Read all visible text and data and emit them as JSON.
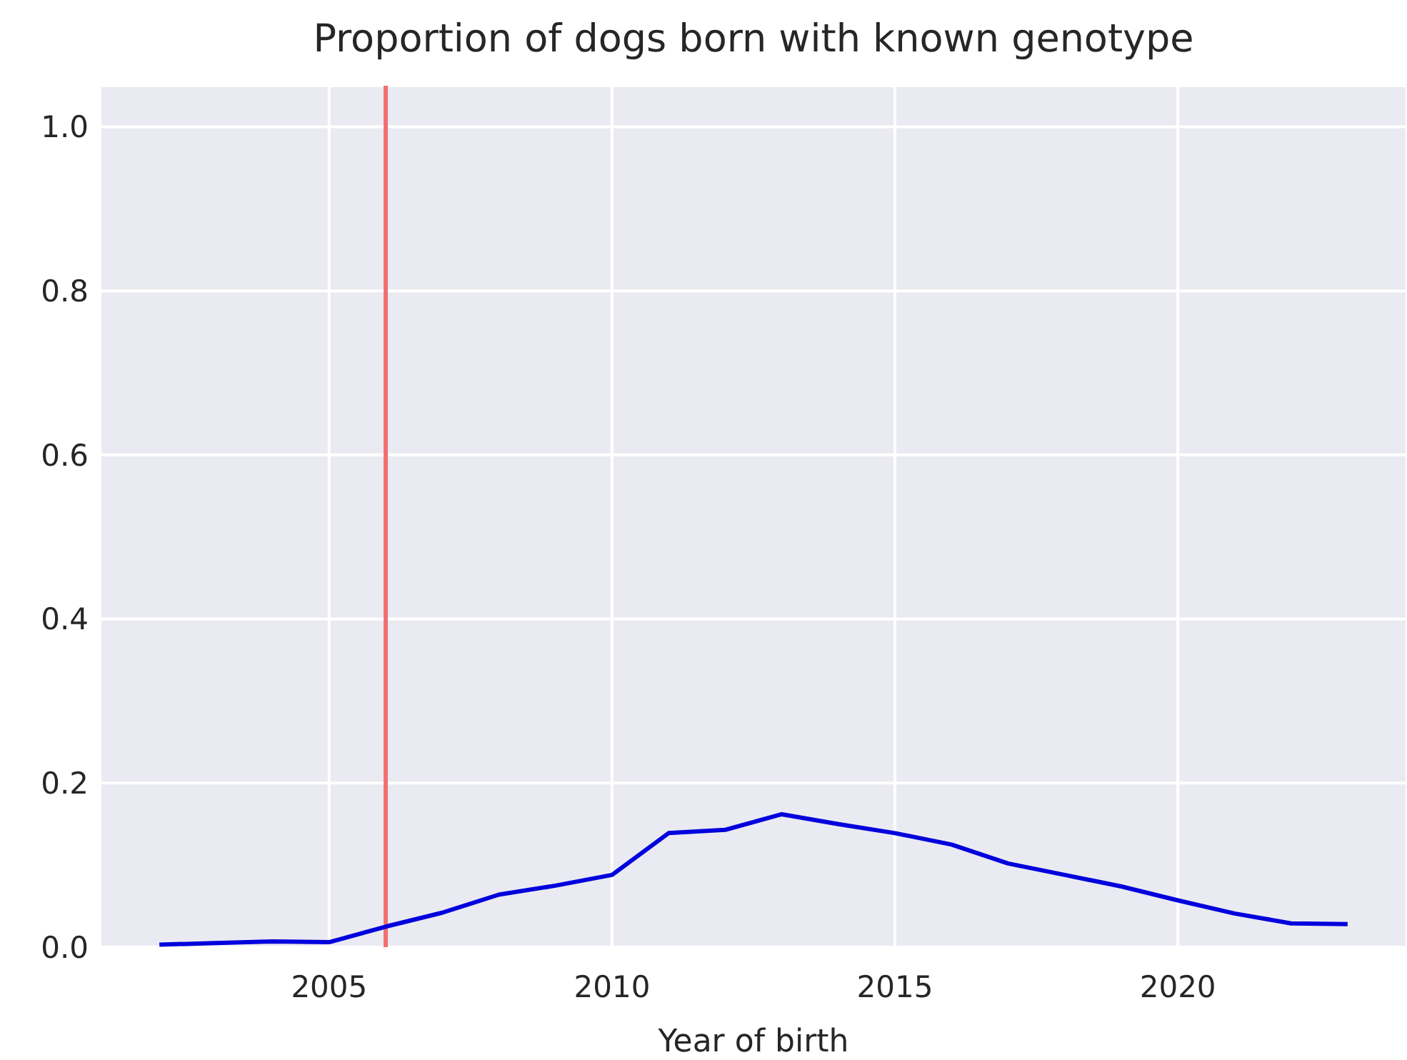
{
  "chart_data": {
    "type": "line",
    "title": "Proportion of dogs born with known genotype",
    "xlabel": "Year of birth",
    "x": [
      2002,
      2003,
      2004,
      2005,
      2006,
      2007,
      2008,
      2009,
      2010,
      2011,
      2012,
      2013,
      2014,
      2015,
      2016,
      2017,
      2018,
      2019,
      2020,
      2021,
      2022,
      2023
    ],
    "series": [
      {
        "color": "#0000dd",
        "values": [
          0.003,
          0.005,
          0.007,
          0.006,
          0.025,
          0.042,
          0.064,
          0.075,
          0.088,
          0.139,
          0.143,
          0.162,
          0.15,
          0.139,
          0.125,
          0.102,
          0.088,
          0.074,
          0.057,
          0.041,
          0.029,
          0.028
        ]
      }
    ],
    "xlim": [
      2000.95,
      2024.05
    ],
    "xticks": [
      2005,
      2010,
      2015,
      2020
    ],
    "ylim": [
      0,
      1.05
    ],
    "yticks": [
      {
        "value": 0,
        "label": "0.0"
      },
      0.2,
      0.4,
      0.6,
      0.8,
      {
        "value": 1,
        "label": "1.0"
      }
    ],
    "ref_lines": [
      {
        "axis": "x",
        "value": 2006,
        "color": "#f07070"
      }
    ],
    "grid": true,
    "marker": "none",
    "line_style": "solid"
  }
}
